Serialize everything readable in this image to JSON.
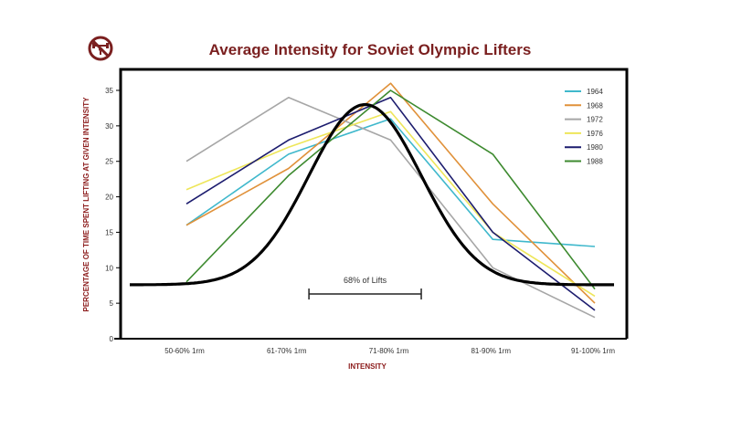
{
  "logo": {
    "icon": "weightlifter-prohibited-icon",
    "color": "#7a1f1f"
  },
  "chart_data": {
    "type": "line",
    "title": "Average Intensity for Soviet Olympic Lifters",
    "xlabel": "INTENSITY",
    "ylabel": "PERCENTAGE OF TIME SPENT LIFTING AT GIVEN INTENSITY",
    "categories": [
      "50-60% 1rm",
      "61-70% 1rm",
      "71-80% 1rm",
      "81-90% 1rm",
      "91-100% 1rm"
    ],
    "ylim": [
      0,
      35
    ],
    "yticks": [
      "0",
      "5",
      "10",
      "15",
      "20",
      "25",
      "30",
      "35"
    ],
    "legend_position": "top-right",
    "grid": false,
    "series": [
      {
        "name": "1964",
        "color": "#3fb8cc",
        "values": [
          16,
          26,
          31,
          14,
          13
        ]
      },
      {
        "name": "1968",
        "color": "#e0913a",
        "values": [
          16,
          24,
          36,
          19,
          5
        ]
      },
      {
        "name": "1972",
        "color": "#a6a6a6",
        "values": [
          25,
          34,
          28,
          10,
          3
        ]
      },
      {
        "name": "1976",
        "color": "#eee65a",
        "values": [
          21,
          27,
          32,
          15,
          6
        ]
      },
      {
        "name": "1980",
        "color": "#1c1c6e",
        "values": [
          19,
          28,
          34,
          15,
          4
        ]
      },
      {
        "name": "1988",
        "color": "#3d8a2f",
        "values": [
          8,
          23,
          35,
          26,
          7
        ]
      }
    ],
    "normal_curve": {
      "color": "#000000",
      "mean": 1.75,
      "sd": 0.55,
      "peak": 33,
      "baseline": 7.6
    },
    "annotation": {
      "text": "68% of Lifts",
      "from": 1.2,
      "to": 2.3,
      "y": 6.3
    },
    "title_color": "#7a1f1f",
    "axis_label_color": "#8b1a1a"
  }
}
